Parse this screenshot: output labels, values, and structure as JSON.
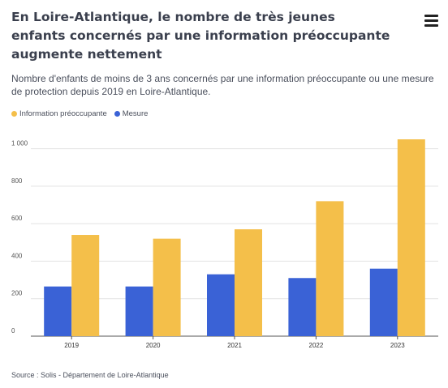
{
  "header": {
    "title": "En Loire-Atlantique, le nombre de très jeunes enfants concernés par une information préoccupante augmente nettement",
    "subtitle": "Nombre d'enfants de moins de 3 ans concernés par une information préoccupante ou une mesure de protection depuis 2019 en Loire-Atlantique.",
    "menu_icon": "hamburger-menu-icon"
  },
  "footer": {
    "source": "Source : Solis - Département de Loire-Atlantique"
  },
  "chart_data": {
    "type": "bar",
    "title": "En Loire-Atlantique, le nombre de très jeunes enfants concernés par une information préoccupante augmente nettement",
    "xlabel": "",
    "ylabel": "",
    "categories": [
      "2019",
      "2020",
      "2021",
      "2022",
      "2023"
    ],
    "series": [
      {
        "name": "Information préoccupante",
        "color": "#f4bf4a",
        "values": [
          540,
          520,
          570,
          720,
          1050
        ]
      },
      {
        "name": "Mesure",
        "color": "#3a62d6",
        "values": [
          265,
          265,
          330,
          310,
          360
        ]
      }
    ],
    "bar_order": [
      "Mesure",
      "Information préoccupante"
    ],
    "ylim": [
      0,
      1050
    ],
    "yticks": [
      0,
      200,
      400,
      600,
      800,
      1000
    ],
    "ytick_labels": [
      "0",
      "200",
      "400",
      "600",
      "800",
      "1 000"
    ],
    "grid": true,
    "legend_position": "top-left"
  }
}
